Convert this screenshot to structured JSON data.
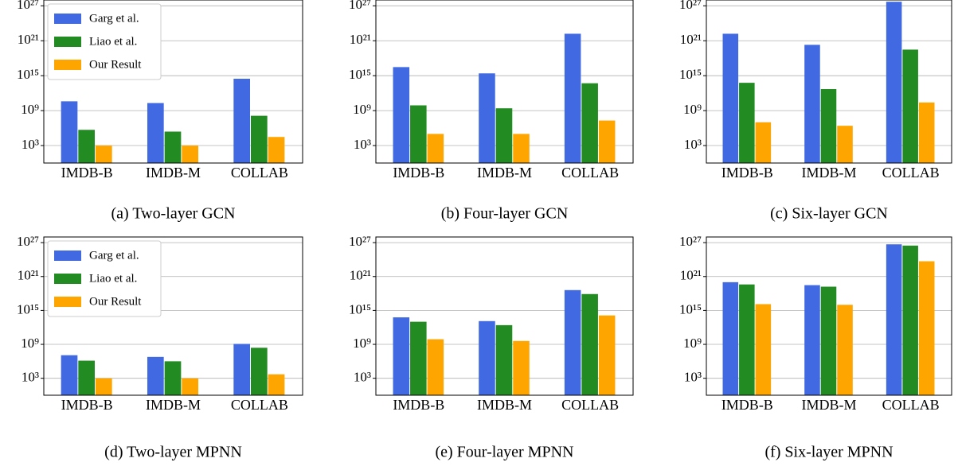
{
  "chart_data": [
    {
      "type": "bar",
      "caption": "(a) Two-layer GCN",
      "categories": [
        "IMDB-B",
        "IMDB-M",
        "COLLAB"
      ],
      "log_scale": true,
      "grid": true,
      "legend": "upper left",
      "ylim": [
        1,
        1e+28
      ],
      "yticks": [
        {
          "value": 1000.0,
          "label": "10³"
        },
        {
          "value": 1000000000.0,
          "label": "10⁹"
        },
        {
          "value": 1000000000000000.0,
          "label": "10¹⁵"
        },
        {
          "value": 1e+21,
          "label": "10²¹"
        },
        {
          "value": 1e+27,
          "label": "10²⁷"
        }
      ],
      "series": [
        {
          "name": "Garg et al.",
          "color": "#4169e1",
          "values": [
            40000000000.0,
            20000000000.0,
            300000000000000.0
          ]
        },
        {
          "name": "Liao et al.",
          "color": "#228b22",
          "values": [
            500000.0,
            250000.0,
            130000000.0
          ]
        },
        {
          "name": "Our Result",
          "color": "#ffa500",
          "values": [
            1000.0,
            1000.0,
            30000.0
          ]
        }
      ]
    },
    {
      "type": "bar",
      "caption": "(b) Four-layer GCN",
      "categories": [
        "IMDB-B",
        "IMDB-M",
        "COLLAB"
      ],
      "log_scale": true,
      "grid": true,
      "ylim": [
        1,
        1e+28
      ],
      "yticks": [
        {
          "value": 1000.0,
          "label": "10³"
        },
        {
          "value": 1000000000.0,
          "label": "10⁹"
        },
        {
          "value": 1000000000000000.0,
          "label": "10¹⁵"
        },
        {
          "value": 1e+21,
          "label": "10²¹"
        },
        {
          "value": 1e+27,
          "label": "10²⁷"
        }
      ],
      "series": [
        {
          "color": "#4169e1",
          "values": [
            3e+16,
            2500000000000000.0,
            1.6e+22
          ]
        },
        {
          "color": "#228b22",
          "values": [
            8000000000.0,
            2500000000.0,
            50000000000000.0
          ]
        },
        {
          "color": "#ffa500",
          "values": [
            100000.0,
            100000.0,
            20000000.0
          ]
        }
      ]
    },
    {
      "type": "bar",
      "caption": "(c) Six-layer GCN",
      "categories": [
        "IMDB-B",
        "IMDB-M",
        "COLLAB"
      ],
      "log_scale": true,
      "grid": true,
      "ylim": [
        1,
        1e+28
      ],
      "yticks": [
        {
          "value": 1000.0,
          "label": "10³"
        },
        {
          "value": 1000000000.0,
          "label": "10⁹"
        },
        {
          "value": 1000000000000000.0,
          "label": "10¹⁵"
        },
        {
          "value": 1e+21,
          "label": "10²¹"
        },
        {
          "value": 1e+27,
          "label": "10²⁷"
        }
      ],
      "series": [
        {
          "color": "#4169e1",
          "values": [
            1.6e+22,
            2e+20,
            5e+27
          ]
        },
        {
          "color": "#228b22",
          "values": [
            60000000000000.0,
            5000000000000.0,
            3e+19
          ]
        },
        {
          "color": "#ffa500",
          "values": [
            10000000.0,
            2500000.0,
            25000000000.0
          ]
        }
      ]
    },
    {
      "type": "bar",
      "caption": "(d) Two-layer MPNN",
      "categories": [
        "IMDB-B",
        "IMDB-M",
        "COLLAB"
      ],
      "log_scale": true,
      "grid": true,
      "legend": "upper left",
      "ylim": [
        1,
        1e+28
      ],
      "yticks": [
        {
          "value": 1000.0,
          "label": "10³"
        },
        {
          "value": 1000000000.0,
          "label": "10⁹"
        },
        {
          "value": 1000000000000000.0,
          "label": "10¹⁵"
        },
        {
          "value": 1e+21,
          "label": "10²¹"
        },
        {
          "value": 1e+27,
          "label": "10²⁷"
        }
      ],
      "series": [
        {
          "name": "Garg et al.",
          "color": "#4169e1",
          "values": [
            12000000.0,
            6000000.0,
            1200000000.0
          ]
        },
        {
          "name": "Liao et al.",
          "color": "#228b22",
          "values": [
            1300000.0,
            1000000.0,
            250000000.0
          ]
        },
        {
          "name": "Our Result",
          "color": "#ffa500",
          "values": [
            1000.0,
            1000.0,
            5000.0
          ]
        }
      ]
    },
    {
      "type": "bar",
      "caption": "(e) Four-layer MPNN",
      "categories": [
        "IMDB-B",
        "IMDB-M",
        "COLLAB"
      ],
      "log_scale": true,
      "grid": true,
      "ylim": [
        1,
        1e+28
      ],
      "yticks": [
        {
          "value": 1000.0,
          "label": "10³"
        },
        {
          "value": 1000000000.0,
          "label": "10⁹"
        },
        {
          "value": 1000000000000000.0,
          "label": "10¹⁵"
        },
        {
          "value": 1e+21,
          "label": "10²¹"
        },
        {
          "value": 1e+27,
          "label": "10²⁷"
        }
      ],
      "series": [
        {
          "color": "#4169e1",
          "values": [
            60000000000000.0,
            13000000000000.0,
            4e+18
          ]
        },
        {
          "color": "#228b22",
          "values": [
            10000000000000.0,
            2500000000000.0,
            8e+17
          ]
        },
        {
          "color": "#ffa500",
          "values": [
            8000000000.0,
            4000000000.0,
            130000000000000.0
          ]
        }
      ]
    },
    {
      "type": "bar",
      "caption": "(f) Six-layer MPNN",
      "categories": [
        "IMDB-B",
        "IMDB-M",
        "COLLAB"
      ],
      "log_scale": true,
      "grid": true,
      "ylim": [
        1,
        1e+28
      ],
      "yticks": [
        {
          "value": 1000.0,
          "label": "10³"
        },
        {
          "value": 1000000000.0,
          "label": "10⁹"
        },
        {
          "value": 1000000000000000.0,
          "label": "10¹⁵"
        },
        {
          "value": 1e+21,
          "label": "10²¹"
        },
        {
          "value": 1e+27,
          "label": "10²⁷"
        }
      ],
      "series": [
        {
          "color": "#4169e1",
          "values": [
            1e+20,
            3e+19,
            5e+26
          ]
        },
        {
          "color": "#228b22",
          "values": [
            4e+19,
            1.6e+19,
            3e+26
          ]
        },
        {
          "color": "#ffa500",
          "values": [
            1.3e+16,
            1e+16,
            5e+23
          ]
        }
      ]
    }
  ]
}
